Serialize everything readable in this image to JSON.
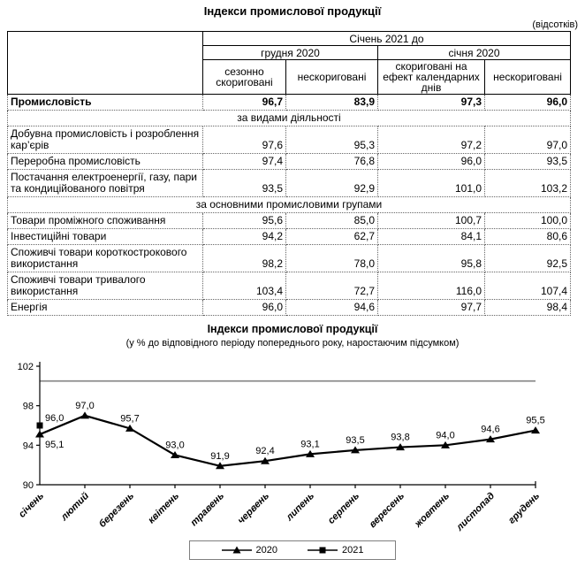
{
  "colors": {
    "series_line": "#000000",
    "reference_line": "#8c8c8c",
    "legend_border": "#7f7f7f",
    "table_grid_dotted": "#666666"
  },
  "table": {
    "title": "Індекси промислової продукції",
    "units_note": "(відсотків)",
    "header": {
      "top": "Січень 2021 до",
      "groups": [
        "грудня 2020",
        "січня 2020"
      ],
      "columns": [
        "сезонно скориговані",
        "нескориговані",
        "скориговані на ефект календарних днів",
        "нескориговані"
      ]
    },
    "rows": [
      {
        "type": "data",
        "bold": true,
        "label": "Промисловість",
        "values": [
          "96,7",
          "83,9",
          "97,3",
          "96,0"
        ]
      },
      {
        "type": "section",
        "label": "за видами діяльності"
      },
      {
        "type": "data",
        "label": "Добувна промисловість і розроблення кар’єрів",
        "values": [
          "97,6",
          "95,3",
          "97,2",
          "97,0"
        ]
      },
      {
        "type": "data",
        "label": "Переробна промисловість",
        "values": [
          "97,4",
          "76,8",
          "96,0",
          "93,5"
        ]
      },
      {
        "type": "data",
        "label": "Постачання електроенергії, газу, пари та кондиційованого повітря",
        "values": [
          "93,5",
          "92,9",
          "101,0",
          "103,2"
        ]
      },
      {
        "type": "section",
        "label": "за основними промисловими групами"
      },
      {
        "type": "data",
        "label": "Товари проміжного споживання",
        "values": [
          "95,6",
          "85,0",
          "100,7",
          "100,0"
        ],
        "raised": true
      },
      {
        "type": "data",
        "label": "Інвестиційні товари",
        "values": [
          "94,2",
          "62,7",
          "84,1",
          "80,6"
        ],
        "raised": true
      },
      {
        "type": "data",
        "label": "Споживчі товари короткострокового використання",
        "values": [
          "98,2",
          "78,0",
          "95,8",
          "92,5"
        ],
        "raised": true
      },
      {
        "type": "data",
        "label": "Споживчі товари тривалого використання",
        "values": [
          "103,4",
          "72,7",
          "116,0",
          "107,4"
        ],
        "raised": true
      },
      {
        "type": "data",
        "label": "Енергія",
        "values": [
          "96,0",
          "94,6",
          "97,7",
          "98,4"
        ],
        "raised": true
      }
    ]
  },
  "chart_data": {
    "type": "line",
    "title": "Індекси промислової продукції",
    "subtitle": "(у % до відповідного періоду попереднього року, наростаючим підсумком)",
    "categories": [
      "січень",
      "лютий",
      "березень",
      "квітень",
      "травень",
      "червень",
      "липень",
      "серпень",
      "вересень",
      "жовтень",
      "листопад",
      "грудень"
    ],
    "series": [
      {
        "name": "2020",
        "marker": "triangle",
        "values": [
          95.1,
          97.0,
          95.7,
          93.0,
          91.9,
          92.4,
          93.1,
          93.5,
          93.8,
          94.0,
          94.6,
          95.5
        ]
      },
      {
        "name": "2021",
        "marker": "square",
        "values": [
          96.0,
          null,
          null,
          null,
          null,
          null,
          null,
          null,
          null,
          null,
          null,
          null
        ]
      }
    ],
    "ylim": [
      90,
      102
    ],
    "yticks": [
      90,
      94,
      98,
      102
    ],
    "reference_line_y": 100.5,
    "grid": "off",
    "legend_position": "bottom"
  }
}
